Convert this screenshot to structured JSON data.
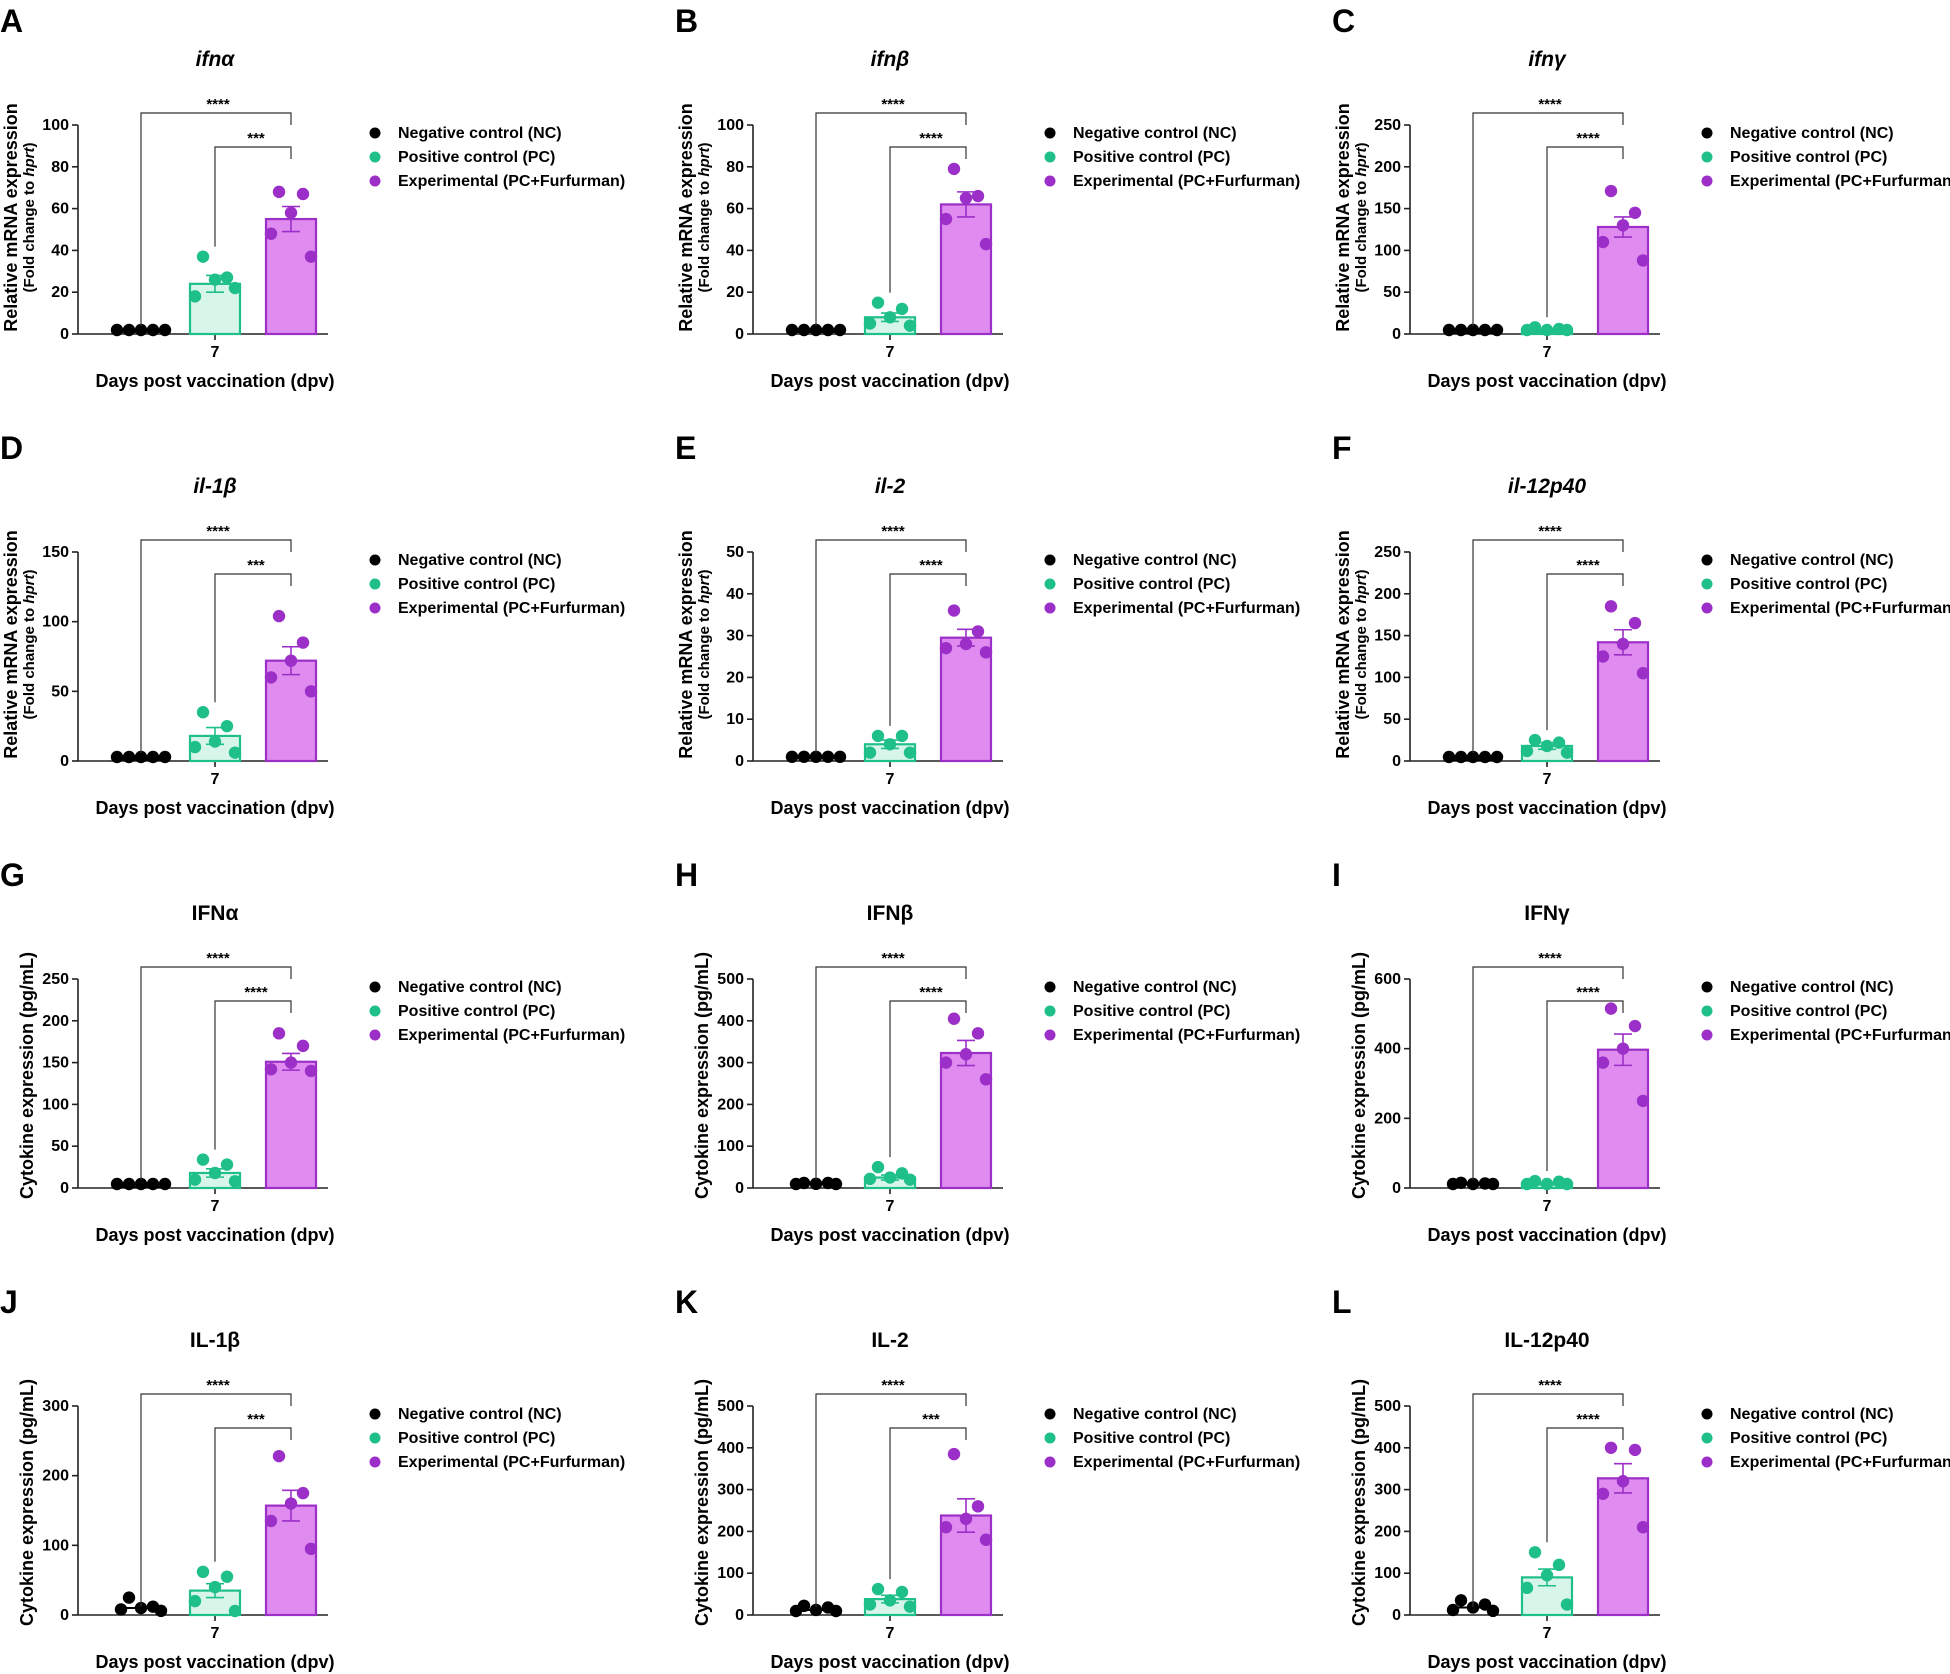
{
  "groups": [
    "Negative control (NC)",
    "Positive control (PC)",
    "Experimental (PC+Furfurman)"
  ],
  "colors": {
    "nc": "#000000",
    "pc": "#1fbf8a",
    "pc_fill": "#d8f5ea",
    "exp": "#9b2fc7",
    "exp_fill": "#df8bf0",
    "axis": "#222222"
  },
  "chart_data": [
    {
      "panel": "A",
      "type": "bar",
      "title": "ifnα",
      "title_italic": true,
      "ylabel": "Relative mRNA expression",
      "ylabel_sub_prefix": "(Fold change to ",
      "ylabel_sub_italic": "hprt",
      "ylabel_sub_suffix": ")",
      "xlabel": "Days post vaccination (dpv)",
      "xtick": "7",
      "ylim": [
        0,
        100
      ],
      "yticks": [
        0,
        20,
        40,
        60,
        80,
        100
      ],
      "series": [
        {
          "name": "Negative control (NC)",
          "mean": 1,
          "sem": 0.2,
          "points": [
            1,
            1,
            1,
            1,
            1
          ]
        },
        {
          "name": "Positive control (PC)",
          "mean": 24,
          "sem": 4,
          "points": [
            37,
            27,
            26,
            18,
            22
          ]
        },
        {
          "name": "Experimental (PC+Furfurman)",
          "mean": 55,
          "sem": 6,
          "points": [
            68,
            67,
            58,
            48,
            37
          ]
        }
      ],
      "sig": [
        "****",
        "***"
      ]
    },
    {
      "panel": "B",
      "type": "bar",
      "title": "ifnβ",
      "title_italic": true,
      "ylabel": "Relative mRNA expression",
      "ylabel_sub_prefix": "(Fold change to ",
      "ylabel_sub_italic": "hprt",
      "ylabel_sub_suffix": ")",
      "xlabel": "Days post vaccination (dpv)",
      "xtick": "7",
      "ylim": [
        0,
        100
      ],
      "yticks": [
        0,
        20,
        40,
        60,
        80,
        100
      ],
      "series": [
        {
          "name": "Negative control (NC)",
          "mean": 1,
          "sem": 0.2,
          "points": [
            1,
            1,
            1,
            1,
            1
          ]
        },
        {
          "name": "Positive control (PC)",
          "mean": 8,
          "sem": 2,
          "points": [
            15,
            12,
            8,
            5,
            4
          ]
        },
        {
          "name": "Experimental (PC+Furfurman)",
          "mean": 62,
          "sem": 6,
          "points": [
            79,
            66,
            65,
            55,
            43
          ]
        }
      ],
      "sig": [
        "****",
        "****"
      ]
    },
    {
      "panel": "C",
      "type": "bar",
      "title": "ifnγ",
      "title_italic": true,
      "ylabel": "Relative mRNA expression",
      "ylabel_sub_prefix": "(Fold change to ",
      "ylabel_sub_italic": "hprt",
      "ylabel_sub_suffix": ")",
      "xlabel": "Days post vaccination (dpv)",
      "xtick": "7",
      "ylim": [
        0,
        250
      ],
      "yticks": [
        0,
        50,
        100,
        150,
        200,
        250
      ],
      "series": [
        {
          "name": "Negative control (NC)",
          "mean": 1,
          "sem": 0.2,
          "points": [
            1,
            1,
            1,
            1,
            1
          ]
        },
        {
          "name": "Positive control (PC)",
          "mean": 3,
          "sem": 1,
          "points": [
            8,
            6,
            4,
            1,
            1
          ]
        },
        {
          "name": "Experimental (PC+Furfurman)",
          "mean": 128,
          "sem": 12,
          "points": [
            171,
            145,
            130,
            110,
            88
          ]
        }
      ],
      "sig": [
        "****",
        "****"
      ]
    },
    {
      "panel": "D",
      "type": "bar",
      "title": "il-1β",
      "title_italic": true,
      "ylabel": "Relative mRNA expression",
      "ylabel_sub_prefix": "(Fold change to ",
      "ylabel_sub_italic": "hprt",
      "ylabel_sub_suffix": ")",
      "xlabel": "Days post vaccination (dpv)",
      "xtick": "7",
      "ylim": [
        0,
        150
      ],
      "yticks": [
        0,
        50,
        100,
        150
      ],
      "series": [
        {
          "name": "Negative control (NC)",
          "mean": 1,
          "sem": 0.2,
          "points": [
            1,
            1,
            1,
            1,
            1
          ]
        },
        {
          "name": "Positive control (PC)",
          "mean": 18,
          "sem": 6,
          "points": [
            35,
            25,
            14,
            10,
            6
          ]
        },
        {
          "name": "Experimental (PC+Furfurman)",
          "mean": 72,
          "sem": 10,
          "points": [
            104,
            85,
            72,
            60,
            50
          ]
        }
      ],
      "sig": [
        "****",
        "***"
      ]
    },
    {
      "panel": "E",
      "type": "bar",
      "title": "il-2",
      "title_italic": true,
      "ylabel": "Relative mRNA expression",
      "ylabel_sub_prefix": "(Fold change to ",
      "ylabel_sub_italic": "hprt",
      "ylabel_sub_suffix": ")",
      "xlabel": "Days post vaccination (dpv)",
      "xtick": "7",
      "ylim": [
        0,
        50
      ],
      "yticks": [
        0,
        10,
        20,
        30,
        40,
        50
      ],
      "series": [
        {
          "name": "Negative control (NC)",
          "mean": 1,
          "sem": 0.2,
          "points": [
            1,
            1,
            1,
            1,
            1
          ]
        },
        {
          "name": "Positive control (PC)",
          "mean": 4,
          "sem": 1,
          "points": [
            6,
            6,
            4,
            2,
            2
          ]
        },
        {
          "name": "Experimental (PC+Furfurman)",
          "mean": 29.5,
          "sem": 2,
          "points": [
            36,
            31,
            28,
            27,
            26
          ]
        }
      ],
      "sig": [
        "****",
        "****"
      ]
    },
    {
      "panel": "F",
      "type": "bar",
      "title": "il-12p40",
      "title_italic": true,
      "ylabel": "Relative mRNA expression",
      "ylabel_sub_prefix": "(Fold change to ",
      "ylabel_sub_italic": "hprt",
      "ylabel_sub_suffix": ")",
      "xlabel": "Days post vaccination (dpv)",
      "xtick": "7",
      "ylim": [
        0,
        250
      ],
      "yticks": [
        0,
        50,
        100,
        150,
        200,
        250
      ],
      "series": [
        {
          "name": "Negative control (NC)",
          "mean": 1,
          "sem": 0.2,
          "points": [
            1,
            1,
            1,
            1,
            1
          ]
        },
        {
          "name": "Positive control (PC)",
          "mean": 18,
          "sem": 4,
          "points": [
            25,
            22,
            18,
            12,
            10
          ]
        },
        {
          "name": "Experimental (PC+Furfurman)",
          "mean": 142,
          "sem": 15,
          "points": [
            185,
            165,
            140,
            125,
            105
          ]
        }
      ],
      "sig": [
        "****",
        "****"
      ]
    },
    {
      "panel": "G",
      "type": "bar",
      "title": "IFNα",
      "title_italic": false,
      "ylabel": "Cytokine expression (pg/mL)",
      "ylabel_sub_prefix": "",
      "ylabel_sub_italic": "",
      "ylabel_sub_suffix": "",
      "xlabel": "Days post vaccination (dpv)",
      "xtick": "7",
      "ylim": [
        0,
        250
      ],
      "yticks": [
        0,
        50,
        100,
        150,
        200,
        250
      ],
      "series": [
        {
          "name": "Negative control (NC)",
          "mean": 1,
          "sem": 0.2,
          "points": [
            1,
            1,
            1,
            1,
            1
          ]
        },
        {
          "name": "Positive control (PC)",
          "mean": 18,
          "sem": 5,
          "points": [
            34,
            28,
            18,
            10,
            8
          ]
        },
        {
          "name": "Experimental (PC+Furfurman)",
          "mean": 151,
          "sem": 10,
          "points": [
            185,
            170,
            150,
            142,
            140
          ]
        }
      ],
      "sig": [
        "****",
        "****"
      ]
    },
    {
      "panel": "H",
      "type": "bar",
      "title": "IFNβ",
      "title_italic": false,
      "ylabel": "Cytokine expression (pg/mL)",
      "ylabel_sub_prefix": "",
      "ylabel_sub_italic": "",
      "ylabel_sub_suffix": "",
      "xlabel": "Days post vaccination (dpv)",
      "xtick": "7",
      "ylim": [
        0,
        500
      ],
      "yticks": [
        0,
        100,
        200,
        300,
        400,
        500
      ],
      "series": [
        {
          "name": "Negative control (NC)",
          "mean": 10,
          "sem": 1,
          "points": [
            12,
            12,
            10,
            9,
            8
          ]
        },
        {
          "name": "Positive control (PC)",
          "mean": 25,
          "sem": 6,
          "points": [
            50,
            35,
            25,
            22,
            20
          ]
        },
        {
          "name": "Experimental (PC+Furfurman)",
          "mean": 323,
          "sem": 30,
          "points": [
            405,
            370,
            320,
            300,
            260
          ]
        }
      ],
      "sig": [
        "****",
        "****"
      ]
    },
    {
      "panel": "I",
      "type": "bar",
      "title": "IFNγ",
      "title_italic": false,
      "ylabel": "Cytokine expression (pg/mL)",
      "ylabel_sub_prefix": "",
      "ylabel_sub_italic": "",
      "ylabel_sub_suffix": "",
      "xlabel": "Days post vaccination (dpv)",
      "xtick": "7",
      "ylim": [
        0,
        600
      ],
      "yticks": [
        0,
        200,
        400,
        600
      ],
      "series": [
        {
          "name": "Negative control (NC)",
          "mean": 10,
          "sem": 1,
          "points": [
            15,
            13,
            10,
            8,
            6
          ]
        },
        {
          "name": "Positive control (PC)",
          "mean": 12,
          "sem": 3,
          "points": [
            20,
            18,
            10,
            6,
            5
          ]
        },
        {
          "name": "Experimental (PC+Furfurman)",
          "mean": 397,
          "sem": 45,
          "points": [
            515,
            465,
            400,
            360,
            250
          ]
        }
      ],
      "sig": [
        "****",
        "****"
      ]
    },
    {
      "panel": "J",
      "type": "bar",
      "title": "IL-1β",
      "title_italic": false,
      "ylabel": "Cytokine expression (pg/mL)",
      "ylabel_sub_prefix": "",
      "ylabel_sub_italic": "",
      "ylabel_sub_suffix": "",
      "xlabel": "Days post vaccination (dpv)",
      "xtick": "7",
      "ylim": [
        0,
        300
      ],
      "yticks": [
        0,
        100,
        200,
        300
      ],
      "series": [
        {
          "name": "Negative control (NC)",
          "mean": 10,
          "sem": 4,
          "points": [
            25,
            12,
            10,
            8,
            6
          ]
        },
        {
          "name": "Positive control (PC)",
          "mean": 35,
          "sem": 10,
          "points": [
            62,
            55,
            40,
            20,
            4
          ]
        },
        {
          "name": "Experimental (PC+Furfurman)",
          "mean": 157,
          "sem": 22,
          "points": [
            228,
            175,
            160,
            135,
            95
          ]
        }
      ],
      "sig": [
        "****",
        "***"
      ]
    },
    {
      "panel": "K",
      "type": "bar",
      "title": "IL-2",
      "title_italic": false,
      "ylabel": "Cytokine expression (pg/mL)",
      "ylabel_sub_prefix": "",
      "ylabel_sub_italic": "",
      "ylabel_sub_suffix": "",
      "xlabel": "Days post vaccination (dpv)",
      "xtick": "7",
      "ylim": [
        0,
        500
      ],
      "yticks": [
        0,
        100,
        200,
        300,
        400,
        500
      ],
      "series": [
        {
          "name": "Negative control (NC)",
          "mean": 12,
          "sem": 3,
          "points": [
            22,
            18,
            12,
            8,
            5
          ]
        },
        {
          "name": "Positive control (PC)",
          "mean": 38,
          "sem": 9,
          "points": [
            62,
            55,
            35,
            25,
            20
          ]
        },
        {
          "name": "Experimental (PC+Furfurman)",
          "mean": 238,
          "sem": 40,
          "points": [
            385,
            260,
            230,
            210,
            180
          ]
        }
      ],
      "sig": [
        "****",
        "***"
      ]
    },
    {
      "panel": "L",
      "type": "bar",
      "title": "IL-12p40",
      "title_italic": false,
      "ylabel": "Cytokine expression (pg/mL)",
      "ylabel_sub_prefix": "",
      "ylabel_sub_italic": "",
      "ylabel_sub_suffix": "",
      "xlabel": "Days post vaccination (dpv)",
      "xtick": "7",
      "ylim": [
        0,
        500
      ],
      "yticks": [
        0,
        100,
        200,
        300,
        400,
        500
      ],
      "series": [
        {
          "name": "Negative control (NC)",
          "mean": 18,
          "sem": 6,
          "points": [
            35,
            25,
            18,
            12,
            10
          ]
        },
        {
          "name": "Positive control (PC)",
          "mean": 90,
          "sem": 20,
          "points": [
            150,
            120,
            95,
            65,
            25
          ]
        },
        {
          "name": "Experimental (PC+Furfurman)",
          "mean": 327,
          "sem": 35,
          "points": [
            400,
            395,
            320,
            290,
            210
          ]
        }
      ],
      "sig": [
        "****",
        "****"
      ]
    }
  ]
}
